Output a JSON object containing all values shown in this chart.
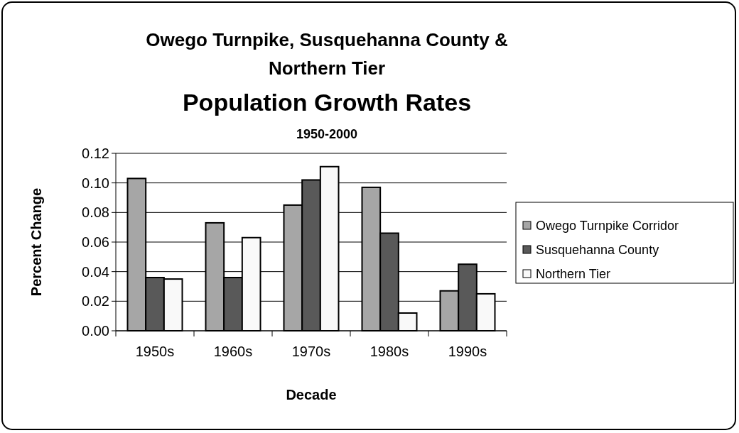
{
  "chart_data": {
    "type": "bar",
    "title": "Owego Turnpike, Susquehanna County & Northern Tier",
    "subtitle": "Population Growth Rates",
    "annotations": [
      "1950-2000"
    ],
    "xlabel": "Decade",
    "ylabel": "Percent Change",
    "categories": [
      "1950s",
      "1960s",
      "1970s",
      "1980s",
      "1990s"
    ],
    "series": [
      {
        "name": "Owego Turnpike Corridor",
        "color": "#a6a6a6",
        "values": [
          0.103,
          0.073,
          0.085,
          0.097,
          0.027
        ]
      },
      {
        "name": "Susquehanna County",
        "color": "#595959",
        "values": [
          0.036,
          0.036,
          0.102,
          0.066,
          0.045
        ]
      },
      {
        "name": "Northern Tier",
        "color": "#f9f9f9",
        "values": [
          0.035,
          0.063,
          0.111,
          0.012,
          0.025
        ]
      }
    ],
    "ylim": [
      0,
      0.12
    ],
    "yticks": [
      {
        "value": 0,
        "label": "0.00"
      },
      {
        "value": 0.02,
        "label": "0.02"
      },
      {
        "value": 0.04,
        "label": "0.04"
      },
      {
        "value": 0.06,
        "label": "0.06"
      },
      {
        "value": 0.08,
        "label": "0.08"
      },
      {
        "value": 0.1,
        "label": "0.10"
      },
      {
        "value": 0.12,
        "label": "0.12"
      }
    ],
    "grid": "y",
    "legend": "right"
  }
}
